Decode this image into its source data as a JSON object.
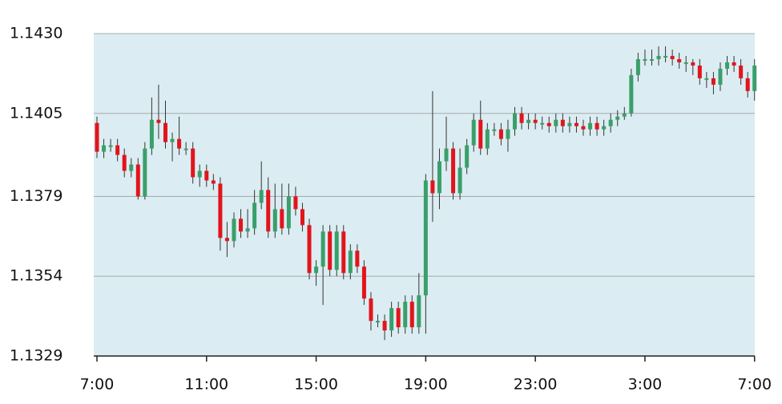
{
  "chart_data": {
    "type": "candlestick",
    "categories": [
      "7:00",
      null,
      null,
      null,
      null,
      null,
      null,
      null,
      null,
      null,
      null,
      null,
      null,
      null,
      null,
      null,
      "11:00",
      null,
      null,
      null,
      null,
      null,
      null,
      null,
      null,
      null,
      null,
      null,
      null,
      null,
      null,
      null,
      "15:00",
      null,
      null,
      null,
      null,
      null,
      null,
      null,
      null,
      null,
      null,
      null,
      null,
      null,
      null,
      null,
      "19:00",
      null,
      null,
      null,
      null,
      null,
      null,
      null,
      null,
      null,
      null,
      null,
      null,
      null,
      null,
      null,
      "23:00",
      null,
      null,
      null,
      null,
      null,
      null,
      null,
      null,
      null,
      null,
      null,
      null,
      null,
      null,
      null,
      "3:00",
      null,
      null,
      null,
      null,
      null,
      null,
      null,
      null,
      null,
      null,
      null,
      null,
      null,
      null,
      null,
      "7:00"
    ],
    "open": [
      1.1402,
      1.1393,
      1.1395,
      1.1395,
      1.1392,
      1.1387,
      1.1389,
      1.1379,
      1.1394,
      1.1403,
      1.1402,
      1.1396,
      1.1397,
      1.1394,
      1.1394,
      1.1385,
      1.1387,
      1.1384,
      1.1383,
      1.1366,
      1.1365,
      1.1372,
      1.1368,
      1.1369,
      1.1377,
      1.1381,
      1.1368,
      1.1375,
      1.1369,
      1.1379,
      1.1375,
      1.137,
      1.1355,
      1.1357,
      1.1368,
      1.1356,
      1.1368,
      1.1355,
      1.1362,
      1.1357,
      1.1347,
      1.134,
      1.134,
      1.1337,
      1.1344,
      1.1338,
      1.1346,
      1.1338,
      1.1348,
      1.1384,
      1.138,
      1.139,
      1.1394,
      1.138,
      1.1388,
      1.1395,
      1.1403,
      1.1394,
      1.14,
      1.14,
      1.1397,
      1.14,
      1.1405,
      1.1402,
      1.1403,
      1.1402,
      1.1402,
      1.1401,
      1.1403,
      1.1401,
      1.1402,
      1.1401,
      1.14,
      1.1402,
      1.14,
      1.1401,
      1.1403,
      1.1404,
      1.1405,
      1.1417,
      1.1422,
      1.1422,
      1.1422,
      1.1423,
      1.1423,
      1.1422,
      1.1421,
      1.1421,
      1.142,
      1.1416,
      1.1416,
      1.1414,
      1.1419,
      1.1421,
      1.142,
      1.1416,
      1.1412
    ],
    "high": [
      1.1404,
      1.1397,
      1.1397,
      1.1397,
      1.1394,
      1.1391,
      1.1391,
      1.1396,
      1.141,
      1.1414,
      1.1409,
      1.1399,
      1.1404,
      1.1396,
      1.1396,
      1.1389,
      1.1389,
      1.1386,
      1.1385,
      1.1371,
      1.1374,
      1.1375,
      1.1375,
      1.1381,
      1.139,
      1.1385,
      1.1383,
      1.1383,
      1.1383,
      1.1382,
      1.1377,
      1.1372,
      1.1359,
      1.137,
      1.137,
      1.137,
      1.137,
      1.1364,
      1.1364,
      1.1359,
      1.1349,
      1.1342,
      1.1342,
      1.1346,
      1.1346,
      1.1348,
      1.1348,
      1.1355,
      1.1386,
      1.1412,
      1.1394,
      1.1404,
      1.1396,
      1.1394,
      1.1397,
      1.1405,
      1.1409,
      1.1402,
      1.1402,
      1.1402,
      1.1403,
      1.1407,
      1.1407,
      1.1405,
      1.1405,
      1.1404,
      1.1404,
      1.1405,
      1.1405,
      1.1404,
      1.1404,
      1.1403,
      1.1404,
      1.1404,
      1.1403,
      1.1405,
      1.1406,
      1.1407,
      1.1419,
      1.1424,
      1.1425,
      1.1425,
      1.1426,
      1.1426,
      1.1425,
      1.1424,
      1.1423,
      1.1422,
      1.1422,
      1.1418,
      1.1418,
      1.1421,
      1.1423,
      1.1423,
      1.1422,
      1.1418,
      1.1422
    ],
    "low": [
      1.1391,
      1.1391,
      1.1393,
      1.139,
      1.1385,
      1.1385,
      1.1378,
      1.1378,
      1.1392,
      1.1397,
      1.1394,
      1.139,
      1.1392,
      1.1392,
      1.1383,
      1.1382,
      1.1382,
      1.1381,
      1.1362,
      1.136,
      1.1363,
      1.1366,
      1.1366,
      1.1367,
      1.1375,
      1.1366,
      1.1366,
      1.1367,
      1.1367,
      1.1373,
      1.1368,
      1.1353,
      1.1351,
      1.1345,
      1.1354,
      1.1354,
      1.1353,
      1.1353,
      1.1355,
      1.1345,
      1.1337,
      1.1338,
      1.1334,
      1.1335,
      1.1336,
      1.1336,
      1.1336,
      1.1336,
      1.1336,
      1.1371,
      1.1375,
      1.1387,
      1.1378,
      1.1378,
      1.1386,
      1.1393,
      1.1392,
      1.1392,
      1.1398,
      1.1395,
      1.1393,
      1.1398,
      1.14,
      1.14,
      1.14,
      1.14,
      1.1399,
      1.1399,
      1.1399,
      1.1399,
      1.1399,
      1.1398,
      1.1398,
      1.1398,
      1.1398,
      1.1399,
      1.1401,
      1.1403,
      1.1404,
      1.1415,
      1.142,
      1.142,
      1.142,
      1.1421,
      1.142,
      1.1419,
      1.1418,
      1.1417,
      1.1414,
      1.1413,
      1.1411,
      1.1412,
      1.1417,
      1.1418,
      1.1414,
      1.141,
      1.1409
    ],
    "close": [
      1.1393,
      1.1395,
      1.1395,
      1.1392,
      1.1387,
      1.1389,
      1.1379,
      1.1394,
      1.1403,
      1.1402,
      1.1396,
      1.1397,
      1.1394,
      1.1394,
      1.1385,
      1.1387,
      1.1384,
      1.1383,
      1.1366,
      1.1365,
      1.1372,
      1.1368,
      1.1369,
      1.1377,
      1.1381,
      1.1368,
      1.1375,
      1.1369,
      1.1379,
      1.1375,
      1.137,
      1.1355,
      1.1357,
      1.1368,
      1.1356,
      1.1368,
      1.1355,
      1.1362,
      1.1357,
      1.1347,
      1.134,
      1.134,
      1.1337,
      1.1344,
      1.1338,
      1.1346,
      1.1338,
      1.1348,
      1.1384,
      1.138,
      1.139,
      1.1394,
      1.138,
      1.1388,
      1.1395,
      1.1403,
      1.1394,
      1.14,
      1.14,
      1.1397,
      1.14,
      1.1405,
      1.1402,
      1.1403,
      1.1402,
      1.1402,
      1.1401,
      1.1403,
      1.1401,
      1.1402,
      1.1401,
      1.14,
      1.1402,
      1.14,
      1.1401,
      1.1403,
      1.1404,
      1.1405,
      1.1417,
      1.1422,
      1.1422,
      1.1422,
      1.1423,
      1.1423,
      1.1422,
      1.1421,
      1.1421,
      1.142,
      1.1416,
      1.1416,
      1.1414,
      1.1419,
      1.1421,
      1.142,
      1.1416,
      1.1412,
      1.142
    ],
    "up_color": "#3a9f6b",
    "down_color": "#e3141c",
    "ylim": [
      1.1329,
      1.143
    ],
    "yticks": [
      {
        "value": 1.143,
        "label": "1.1430"
      },
      1.1405,
      1.1379,
      1.1354,
      1.1329
    ],
    "grid": true
  }
}
